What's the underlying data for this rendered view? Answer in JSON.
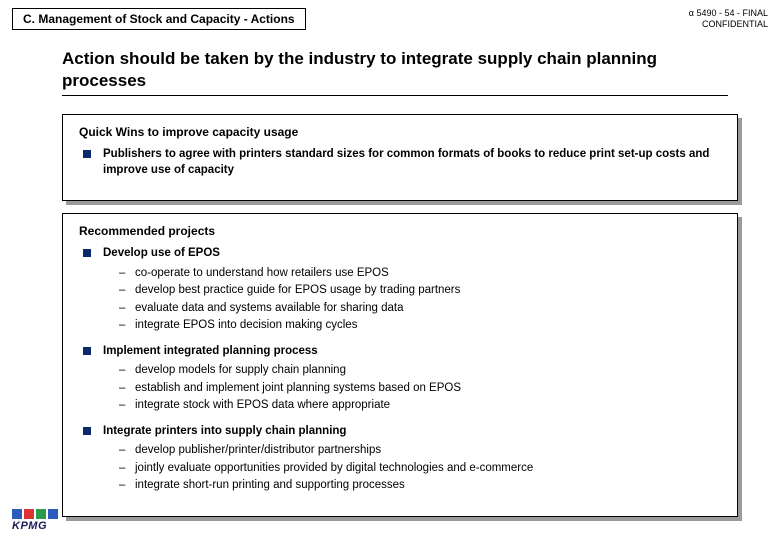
{
  "header": {
    "section_title": "C. Management of Stock and Capacity - Actions",
    "doc_ref_line1": "α 5490  - 54 - FINAL",
    "doc_ref_line2": "CONFIDENTIAL"
  },
  "main_heading": "Action should be taken by the industry to integrate supply chain planning processes",
  "panel1": {
    "title": "Quick Wins to improve capacity usage",
    "bullet1": "Publishers to agree with printers standard sizes for common formats of books to reduce print set-up costs and improve use of capacity"
  },
  "panel2": {
    "title": "Recommended projects",
    "b1": {
      "title": "Develop use of EPOS",
      "d1": "co-operate to understand how retailers use EPOS",
      "d2": "develop best practice guide for EPOS usage by trading partners",
      "d3": "evaluate data and systems available for sharing data",
      "d4": "integrate EPOS into decision making cycles"
    },
    "b2": {
      "title": "Implement integrated planning process",
      "d1": "develop models for supply chain planning",
      "d2": "establish and implement joint planning systems based on EPOS",
      "d3": "integrate stock with EPOS data where appropriate"
    },
    "b3": {
      "title": "Integrate printers into supply chain planning",
      "d1": "develop publisher/printer/distributor partnerships",
      "d2": "jointly evaluate opportunities provided by digital technologies and e-commerce",
      "d3": "integrate short-run printing and supporting processes"
    }
  },
  "logo": {
    "text": "KPMG",
    "colors": [
      "#2b5bbf",
      "#d33",
      "#2a9d4a",
      "#2b5bbf"
    ]
  },
  "colors": {
    "bullet_square": "#0a2a6b",
    "panel_shadow": "#9a9a9a"
  }
}
